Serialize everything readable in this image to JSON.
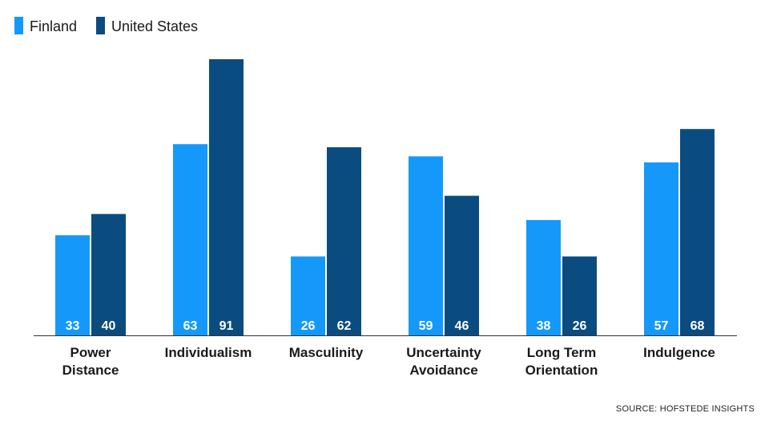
{
  "colors": {
    "finland": "#1499fb",
    "united_states": "#0b4c80",
    "axis": "#333333"
  },
  "legend": [
    {
      "name": "Finland",
      "color": "#1499fb"
    },
    {
      "name": "United States",
      "color": "#0b4c80"
    }
  ],
  "source": "SOURCE: HOFSTEDE INSIGHTS",
  "chart_data": {
    "type": "bar",
    "title": "",
    "xlabel": "",
    "ylabel": "",
    "ylim": [
      0,
      100
    ],
    "grid": false,
    "legend_position": "top-left",
    "categories": [
      [
        "Power",
        "Distance"
      ],
      [
        "Individualism"
      ],
      [
        "Masculinity"
      ],
      [
        "Uncertainty",
        "Avoidance"
      ],
      [
        "Long Term",
        "Orientation"
      ],
      [
        "Indulgence"
      ]
    ],
    "series": [
      {
        "name": "Finland",
        "color": "#1499fb",
        "values": [
          33,
          63,
          26,
          59,
          38,
          57
        ]
      },
      {
        "name": "United States",
        "color": "#0b4c80",
        "values": [
          40,
          91,
          62,
          46,
          26,
          68
        ]
      }
    ]
  }
}
